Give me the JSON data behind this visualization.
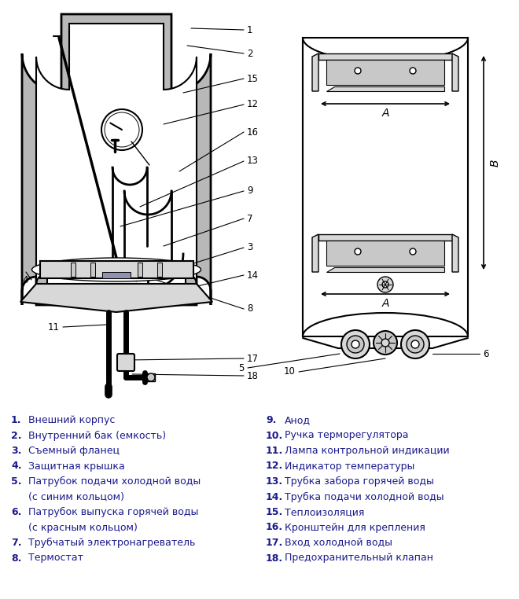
{
  "bg_color": "#ffffff",
  "line_color": "#000000",
  "gray_fill": "#b8b8b8",
  "light_gray": "#d8d8d8",
  "mid_gray": "#c8c8c8",
  "dark_gray": "#a0a0a0",
  "text_color_black": "#000000",
  "text_color_blue": "#1a1a8c",
  "legend_left": [
    [
      "1.",
      "Внешний корпус"
    ],
    [
      "2.",
      "Внутренний бак (емкость)"
    ],
    [
      "3.",
      "Съемный фланец"
    ],
    [
      "4.",
      "Защитная крышка"
    ],
    [
      "5.",
      "Патрубок подачи холодной воды"
    ],
    [
      "",
      "(с синим кольцом)"
    ],
    [
      "6.",
      "Патрубок выпуска горячей воды"
    ],
    [
      "",
      "(с красным кольцом)"
    ],
    [
      "7.",
      "Трубчатый электронагреватель"
    ],
    [
      "8.",
      "Термостат"
    ]
  ],
  "legend_right": [
    [
      "9.",
      "Анод"
    ],
    [
      "10.",
      "Ручка терморегулятора"
    ],
    [
      "11.",
      "Лампа контрольной индикации"
    ],
    [
      "12.",
      "Индикатор температуры"
    ],
    [
      "13.",
      "Трубка забора горячей воды"
    ],
    [
      "14.",
      "Трубка подачи холодной воды"
    ],
    [
      "15.",
      "Теплоизоляция"
    ],
    [
      "16.",
      "Кронштейн для крепления"
    ],
    [
      "17.",
      "Вход холодной воды"
    ],
    [
      "18.",
      "Предохранительный клапан"
    ]
  ]
}
